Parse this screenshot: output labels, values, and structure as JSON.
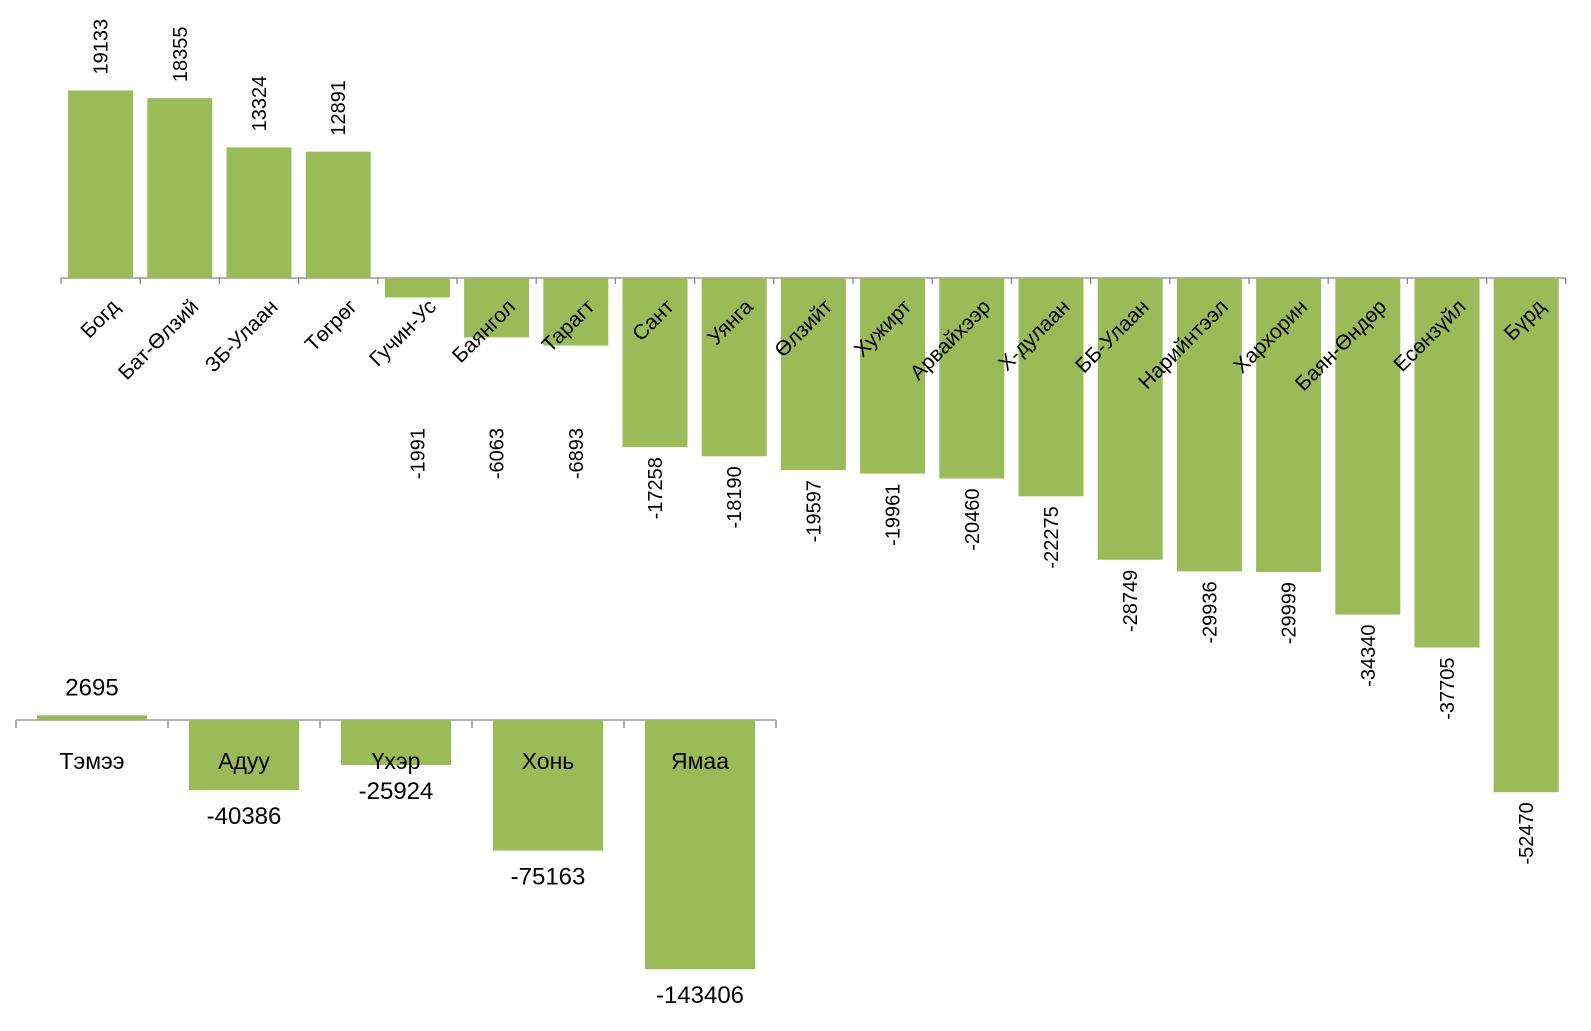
{
  "chart_data": [
    {
      "type": "bar",
      "title": "",
      "xlabel": "",
      "ylabel": "",
      "color": "#9BBB59",
      "axis_color": "#868686",
      "categories": [
        "Богд",
        "Бат-Өлзий",
        "ЗБ-Улаан",
        "Төгрөг",
        "Гучин-Ус",
        "Баянгол",
        "Тарагт",
        "Сант",
        "Уянга",
        "Өлзийт",
        "Хужирт",
        "Арвайхээр",
        "Х-дулаан",
        "ББ-Улаан",
        "Нарийнтээл",
        "Хархорин",
        "Баян-Өндөр",
        "Есөнзүйл",
        "Бүрд"
      ],
      "values": [
        19133,
        18355,
        13324,
        12891,
        -1991,
        -6063,
        -6893,
        -17258,
        -18190,
        -19597,
        -19961,
        -20460,
        -22275,
        -28749,
        -29936,
        -29999,
        -34340,
        -37705,
        -52470
      ],
      "data_labels": [
        "19133",
        "18355",
        "13324",
        "12891",
        "-1991",
        "-6063",
        "-6893",
        "-17258",
        "-18190",
        "-19597",
        "-19961",
        "-20460",
        "-22275",
        "-28749",
        "-29936",
        "-29999",
        "-34340",
        "-37705",
        "-52470"
      ],
      "grid": false,
      "legend": "none"
    },
    {
      "type": "bar",
      "title": "",
      "xlabel": "",
      "ylabel": "",
      "color": "#9BBB59",
      "axis_color": "#868686",
      "categories": [
        "Тэмээ",
        "Адуу",
        "Үхэр",
        "Хонь",
        "Ямаа"
      ],
      "values": [
        2695,
        -40386,
        -25924,
        -75163,
        -143406
      ],
      "data_labels": [
        "2695",
        "-40386",
        "-25924",
        "-75163",
        "-143406"
      ],
      "grid": false,
      "legend": "none"
    }
  ]
}
